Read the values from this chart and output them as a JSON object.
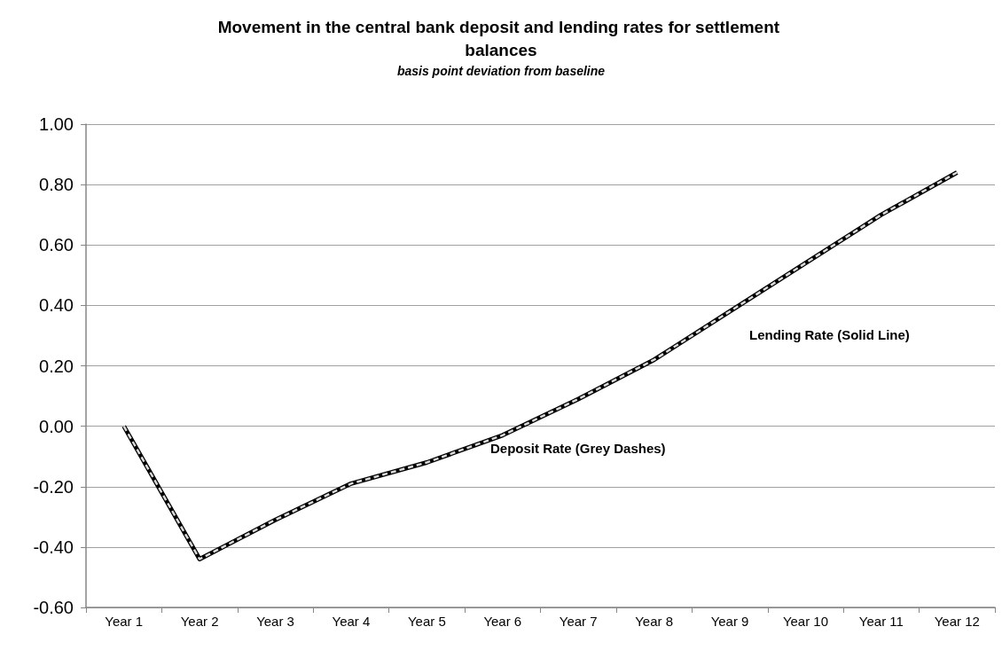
{
  "chart_data": {
    "type": "line",
    "title": "Movement in the central bank deposit and lending rates for settlement balances",
    "subtitle": "basis point deviation from baseline",
    "categories": [
      "Year 1",
      "Year 2",
      "Year 3",
      "Year 4",
      "Year 5",
      "Year 6",
      "Year 7",
      "Year 8",
      "Year 9",
      "Year 10",
      "Year 11",
      "Year 12"
    ],
    "series": [
      {
        "color": "#000000",
        "line_style": "solid",
        "values": [
          0,
          -0.44,
          -0.31,
          -0.19,
          -0.12,
          -0.03,
          0.09,
          0.22,
          0.38,
          0.54,
          0.7,
          0.84
        ]
      },
      {
        "color": "#d9d9d9",
        "line_style": "dashed",
        "values": [
          0,
          -0.44,
          -0.31,
          -0.19,
          -0.12,
          -0.03,
          0.09,
          0.22,
          0.38,
          0.54,
          0.7,
          0.84
        ]
      }
    ],
    "annotations": [
      "Lending Rate (Solid Line)",
      "Deposit Rate (Grey Dashes)"
    ],
    "ylim": [
      -0.6,
      1
    ],
    "yticks": [
      {
        "value": -0.6,
        "label": "-0.60"
      },
      {
        "value": -0.4,
        "label": "-0.40"
      },
      {
        "value": -0.2,
        "label": "-0.20"
      },
      {
        "value": 0,
        "label": "0.00"
      },
      {
        "value": 0.2,
        "label": "0.20"
      },
      {
        "value": 0.4,
        "label": "0.40"
      },
      {
        "value": 0.6,
        "label": "0.60"
      },
      {
        "value": 0.8,
        "label": "0.80"
      },
      {
        "value": 1,
        "label": "1.00"
      }
    ],
    "grid": "y",
    "marker": "none"
  }
}
